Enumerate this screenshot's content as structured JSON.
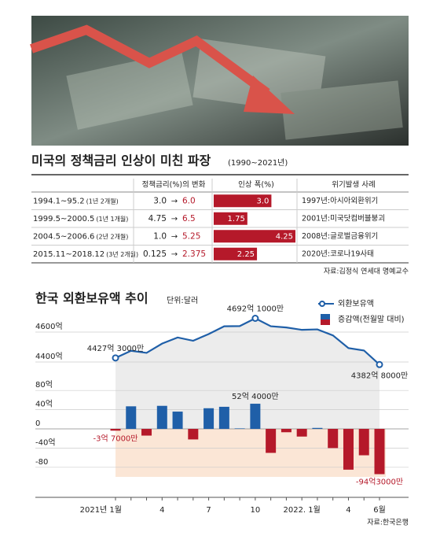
{
  "table": {
    "title": "미국의 정책금리 인상이 미친 파장",
    "subtitle": "(1990~2021년)",
    "columns": [
      "정책금리(%)의 변화",
      "인상 폭(%)",
      "위기발생 사례"
    ],
    "rows": [
      {
        "period": "1994.1~95.2",
        "duration": "(1년 2개월)",
        "from": "3.0",
        "to": "6.0",
        "increase": 3,
        "increase_label": "3.0",
        "crisis": "1997년:아시아외환위기"
      },
      {
        "period": "1999.5~2000.5",
        "duration": "(1년 1개월)",
        "from": "4.75",
        "to": "6.5",
        "increase": 1.75,
        "crisis": "2001년:미국닷컴버블붕괴"
      },
      {
        "period": "2004.5~2006.6",
        "duration": "(2년 2개월)",
        "from": "1.0",
        "to": "5.25",
        "increase": 4.25,
        "crisis": "2008년:글로벌금융위기"
      },
      {
        "period": "2015.11~2018.12",
        "duration": "(3년 2개월)",
        "from": "0.125",
        "to": "2.375",
        "increase": 2.25,
        "crisis": "2020년:코로나19사태"
      }
    ],
    "source": "자료:김정식 연세대 명예교수"
  },
  "chart_data": {
    "type": "combo",
    "title": "한국 외환보유액 추이",
    "unit": "단위:달러",
    "categories": [
      "2021년 1월",
      null,
      null,
      "4",
      null,
      null,
      "7",
      null,
      null,
      "10",
      null,
      null,
      "2022. 1월",
      null,
      null,
      "4",
      null,
      "6월"
    ],
    "series": [
      {
        "name": "외환보유액",
        "type": "line",
        "color": "#1f5fa8",
        "values": [
          4427.3,
          4475,
          4461,
          4523,
          4564,
          4542,
          4587,
          4639,
          4640,
          4692.1,
          4639,
          4631,
          4615,
          4618,
          4578,
          4493,
          4477,
          4382.8
        ],
        "value_labels": [
          "4427억 3000만",
          null,
          null,
          null,
          null,
          null,
          null,
          null,
          null,
          "4692억 1000만",
          null,
          null,
          null,
          null,
          null,
          null,
          null,
          "4382억 8000만"
        ]
      },
      {
        "name": "증감액(전월말 대비)",
        "type": "bar",
        "axis": "y2",
        "color": "#1f5fa8",
        "negative_color": "#b5192a",
        "values": [
          -3.7,
          47,
          -14,
          48,
          36,
          -22,
          43,
          46,
          1,
          52.4,
          -50,
          -7,
          -16,
          2,
          -40,
          -85,
          -55,
          -94.3
        ],
        "value_labels": [
          "-3억 7000만",
          null,
          null,
          null,
          null,
          null,
          null,
          null,
          null,
          "52억 4000만",
          null,
          null,
          null,
          null,
          null,
          null,
          null,
          "-94억3000만"
        ]
      }
    ],
    "ylim": [
      4300,
      4700
    ],
    "yticks": [
      {
        "value": 4400,
        "label": "4400억"
      },
      {
        "value": 4600,
        "label": "4600억"
      }
    ],
    "y2lim": [
      -100,
      100
    ],
    "y2ticks": [
      {
        "value": 80,
        "label": "80억"
      },
      {
        "value": 40,
        "label": "40억"
      },
      0,
      {
        "value": -40,
        "label": "-40억"
      },
      -80
    ],
    "grid": true,
    "source": "자료:한국은행"
  }
}
